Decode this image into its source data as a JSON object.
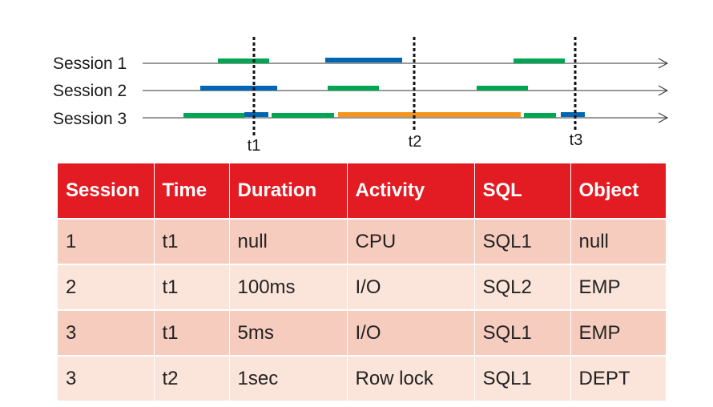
{
  "timeline": {
    "sessions": [
      "Session 1",
      "Session 2",
      "Session 3"
    ],
    "markers": [
      "t1",
      "t2",
      "t3"
    ],
    "colors": {
      "cpu": "#00a651",
      "io": "#0066b3",
      "lock": "#f7941d"
    }
  },
  "table": {
    "headers": [
      "Session",
      "Time",
      "Duration",
      "Activity",
      "SQL",
      "Object"
    ],
    "rows": [
      [
        "1",
        "t1",
        "null",
        "CPU",
        "SQL1",
        "null"
      ],
      [
        "2",
        "t1",
        "100ms",
        "I/O",
        "SQL2",
        "EMP"
      ],
      [
        "3",
        "t1",
        "5ms",
        "I/O",
        "SQL1",
        "EMP"
      ],
      [
        "3",
        "t2",
        "1sec",
        "Row lock",
        "SQL1",
        "DEPT"
      ]
    ]
  }
}
